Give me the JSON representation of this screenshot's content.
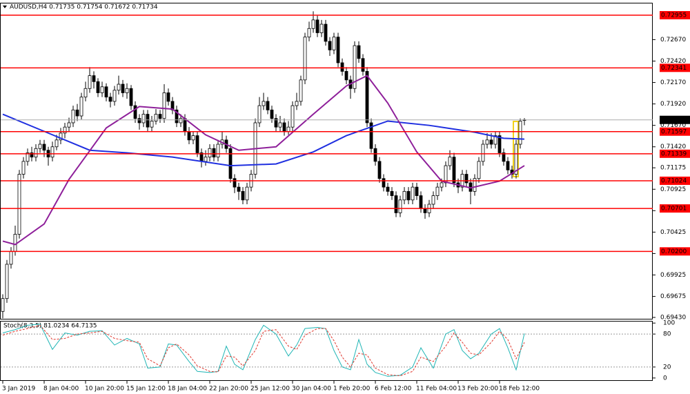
{
  "chart_data": [
    {
      "type": "candlestick",
      "title": "AUDUSD,H4  0.71735 0.71754 0.71672 0.71734",
      "categories": [
        "3 Jan 2019",
        null,
        null,
        null,
        null,
        null,
        null,
        null,
        null,
        null,
        "8 Jan 04:00",
        null,
        null,
        null,
        null,
        null,
        null,
        null,
        null,
        null,
        "10 Jan 20:00",
        null,
        null,
        null,
        null,
        null,
        null,
        null,
        null,
        null,
        "15 Jan 12:00",
        null,
        null,
        null,
        null,
        null,
        null,
        null,
        null,
        null,
        "18 Jan 04:00",
        null,
        null,
        null,
        null,
        null,
        null,
        null,
        null,
        null,
        "22 Jan 20:00",
        null,
        null,
        null,
        null,
        null,
        null,
        null,
        null,
        null,
        "25 Jan 12:00",
        null,
        null,
        null,
        null,
        null,
        null,
        null,
        null,
        null,
        "30 Jan 04:00",
        null,
        null,
        null,
        null,
        null,
        null,
        null,
        null,
        null,
        "1 Feb 20:00",
        null,
        null,
        null,
        null,
        null,
        null,
        null,
        null,
        null,
        "6 Feb 12:00",
        null,
        null,
        null,
        null,
        null,
        null,
        null,
        null,
        null,
        "11 Feb 04:00",
        null,
        null,
        null,
        null,
        null,
        null,
        null,
        null,
        null,
        "13 Feb 20:00",
        null,
        null,
        null,
        null,
        null,
        null,
        null,
        null,
        null,
        "18 Feb 12:00",
        null,
        null,
        null,
        null,
        null,
        null
      ],
      "open": [
        0.695,
        0.6965,
        0.7005,
        0.702,
        0.704,
        0.711,
        0.7125,
        0.7135,
        0.713,
        0.714,
        0.7145,
        0.7138,
        0.713,
        0.7142,
        0.715,
        0.7158,
        0.7165,
        0.717,
        0.7185,
        0.7178,
        0.72,
        0.721,
        0.7225,
        0.7218,
        0.7205,
        0.7212,
        0.72,
        0.7195,
        0.7208,
        0.7215,
        0.7205,
        0.721,
        0.719,
        0.7175,
        0.717,
        0.718,
        0.7165,
        0.7172,
        0.718,
        0.7175,
        0.7205,
        0.7195,
        0.7185,
        0.717,
        0.7175,
        0.716,
        0.715,
        0.7155,
        0.7135,
        0.7125,
        0.713,
        0.714,
        0.713,
        0.7145,
        0.715,
        0.714,
        0.7105,
        0.7095,
        0.709,
        0.708,
        0.7095,
        0.711,
        0.717,
        0.719,
        0.7195,
        0.7185,
        0.7175,
        0.7165,
        0.717,
        0.716,
        0.7165,
        0.719,
        0.7195,
        0.722,
        0.727,
        0.728,
        0.729,
        0.7275,
        0.7285,
        0.7265,
        0.7255,
        0.727,
        0.724,
        0.723,
        0.722,
        0.721,
        0.726,
        0.7245,
        0.723,
        0.717,
        0.714,
        0.7125,
        0.7105,
        0.7095,
        0.709,
        0.7085,
        0.7065,
        0.708,
        0.709,
        0.708,
        0.7095,
        0.7085,
        0.707,
        0.7065,
        0.7075,
        0.7085,
        0.7095,
        0.71,
        0.712,
        0.713,
        0.71,
        0.7095,
        0.711,
        0.71,
        0.709,
        0.7105,
        0.7125,
        0.7145,
        0.715,
        0.7145,
        0.7155,
        0.7135,
        0.7125,
        0.7115,
        0.711,
        0.7145,
        0.71735
      ],
      "high": [
        0.697,
        0.701,
        0.7025,
        0.705,
        0.7115,
        0.713,
        0.714,
        0.7142,
        0.7145,
        0.715,
        0.715,
        0.7142,
        0.7148,
        0.7156,
        0.7164,
        0.717,
        0.7176,
        0.719,
        0.7192,
        0.7205,
        0.7218,
        0.7235,
        0.723,
        0.7222,
        0.7218,
        0.7216,
        0.7205,
        0.7213,
        0.7225,
        0.722,
        0.7216,
        0.7214,
        0.7195,
        0.718,
        0.7185,
        0.7185,
        0.7178,
        0.7186,
        0.7185,
        0.7215,
        0.721,
        0.72,
        0.719,
        0.718,
        0.718,
        0.7165,
        0.716,
        0.716,
        0.714,
        0.7138,
        0.7145,
        0.7145,
        0.715,
        0.716,
        0.7155,
        0.7145,
        0.711,
        0.71,
        0.7095,
        0.71,
        0.7115,
        0.7175,
        0.72,
        0.7205,
        0.72,
        0.719,
        0.718,
        0.7178,
        0.7175,
        0.7172,
        0.7195,
        0.7205,
        0.7225,
        0.7275,
        0.7288,
        0.73,
        0.7295,
        0.729,
        0.729,
        0.727,
        0.7275,
        0.7275,
        0.7245,
        0.7235,
        0.7225,
        0.7265,
        0.7265,
        0.725,
        0.7235,
        0.7175,
        0.7145,
        0.713,
        0.711,
        0.71,
        0.7095,
        0.709,
        0.7085,
        0.7095,
        0.7095,
        0.71,
        0.71,
        0.709,
        0.7075,
        0.708,
        0.709,
        0.71,
        0.7105,
        0.7125,
        0.7138,
        0.7135,
        0.7105,
        0.7115,
        0.7115,
        0.7105,
        0.711,
        0.713,
        0.715,
        0.7158,
        0.7158,
        0.716,
        0.716,
        0.714,
        0.713,
        0.712,
        0.715,
        0.7175,
        0.71754
      ],
      "low": [
        0.6942,
        0.696,
        0.7,
        0.7015,
        0.7035,
        0.7105,
        0.712,
        0.7125,
        0.7125,
        0.7135,
        0.713,
        0.712,
        0.7125,
        0.7138,
        0.7145,
        0.7152,
        0.716,
        0.7165,
        0.7172,
        0.7174,
        0.7195,
        0.7205,
        0.721,
        0.72,
        0.72,
        0.7195,
        0.7188,
        0.719,
        0.7203,
        0.72,
        0.7198,
        0.7185,
        0.717,
        0.7162,
        0.7165,
        0.716,
        0.716,
        0.7168,
        0.717,
        0.717,
        0.719,
        0.718,
        0.7165,
        0.7165,
        0.7155,
        0.7145,
        0.7145,
        0.713,
        0.7118,
        0.712,
        0.7125,
        0.7125,
        0.7125,
        0.714,
        0.7135,
        0.71,
        0.7088,
        0.708,
        0.7075,
        0.7075,
        0.709,
        0.7105,
        0.7165,
        0.7185,
        0.718,
        0.717,
        0.716,
        0.716,
        0.7155,
        0.7156,
        0.716,
        0.7185,
        0.719,
        0.7215,
        0.7265,
        0.7275,
        0.727,
        0.727,
        0.726,
        0.7248,
        0.725,
        0.7235,
        0.7225,
        0.7215,
        0.7198,
        0.7205,
        0.724,
        0.7225,
        0.7165,
        0.7135,
        0.712,
        0.71,
        0.709,
        0.7085,
        0.708,
        0.706,
        0.706,
        0.7075,
        0.7075,
        0.7075,
        0.708,
        0.7065,
        0.7058,
        0.706,
        0.707,
        0.708,
        0.709,
        0.7095,
        0.7115,
        0.7095,
        0.7088,
        0.709,
        0.7095,
        0.7075,
        0.7085,
        0.71,
        0.712,
        0.714,
        0.714,
        0.714,
        0.713,
        0.712,
        0.711,
        0.7105,
        0.7105,
        0.714,
        0.71672
      ],
      "close": [
        0.6965,
        0.7005,
        0.702,
        0.704,
        0.711,
        0.7125,
        0.7135,
        0.713,
        0.714,
        0.7145,
        0.7138,
        0.713,
        0.7142,
        0.715,
        0.7158,
        0.7165,
        0.717,
        0.7185,
        0.7178,
        0.72,
        0.721,
        0.7225,
        0.7218,
        0.7205,
        0.7212,
        0.72,
        0.7195,
        0.7208,
        0.7215,
        0.7205,
        0.721,
        0.719,
        0.7175,
        0.717,
        0.718,
        0.7165,
        0.7172,
        0.718,
        0.7175,
        0.7205,
        0.7195,
        0.7185,
        0.717,
        0.7175,
        0.716,
        0.715,
        0.7155,
        0.7135,
        0.7125,
        0.713,
        0.714,
        0.713,
        0.7145,
        0.715,
        0.714,
        0.7105,
        0.7095,
        0.709,
        0.708,
        0.7095,
        0.711,
        0.717,
        0.719,
        0.7195,
        0.7185,
        0.7175,
        0.7165,
        0.717,
        0.716,
        0.7165,
        0.719,
        0.7195,
        0.722,
        0.727,
        0.728,
        0.729,
        0.7275,
        0.7285,
        0.7265,
        0.7255,
        0.727,
        0.724,
        0.723,
        0.722,
        0.721,
        0.726,
        0.7245,
        0.723,
        0.717,
        0.714,
        0.7125,
        0.7105,
        0.7095,
        0.709,
        0.7085,
        0.7065,
        0.708,
        0.709,
        0.708,
        0.7095,
        0.7085,
        0.707,
        0.7065,
        0.7075,
        0.7085,
        0.7095,
        0.71,
        0.712,
        0.713,
        0.71,
        0.7095,
        0.711,
        0.71,
        0.709,
        0.7105,
        0.7125,
        0.7145,
        0.715,
        0.7145,
        0.7155,
        0.7135,
        0.7125,
        0.7115,
        0.711,
        0.7145,
        0.7172,
        0.71734
      ],
      "up_color": "#ffffff",
      "down_color": "#000000",
      "ylim": [
        0.69414,
        0.73092
      ],
      "yticks": [
        {
          "value": 0.7267,
          "label": "0.72670"
        },
        {
          "value": 0.7242,
          "label": "0.72420"
        },
        {
          "value": 0.7217,
          "label": "0.72170"
        },
        {
          "value": 0.7192,
          "label": "0.71920"
        },
        {
          "value": 0.7167,
          "label": "0.71670"
        },
        {
          "value": 0.7142,
          "label": "0.71420"
        },
        0.71175,
        0.70925,
        0.70675,
        0.70425,
        0.70175,
        0.69925,
        0.69675,
        {
          "value": 0.6943,
          "label": "0.69430"
        }
      ],
      "levels": [
        0.72955,
        0.72341,
        0.71597,
        0.71339,
        0.71024,
        0.70701,
        {
          "value": 0.702,
          "label": "0.70200"
        }
      ],
      "level_color": "#ff0000",
      "overlays": [
        {
          "color": "#1f2fe0",
          "x": [
            0,
            10,
            21,
            30,
            41,
            55,
            66,
            75,
            83,
            93,
            103,
            114,
            121,
            126
          ],
          "values": [
            0.718,
            0.716,
            0.7138,
            0.7135,
            0.713,
            0.712,
            0.7122,
            0.7136,
            0.7155,
            0.7172,
            0.7167,
            0.7159,
            0.7152,
            0.7151
          ]
        },
        {
          "color": "#8e1f9a",
          "x": [
            0,
            3,
            10,
            16,
            25,
            33,
            41,
            49,
            57,
            66,
            75,
            83,
            88,
            93,
            100,
            106,
            113,
            120,
            126
          ],
          "values": [
            0.7032,
            0.7028,
            0.7052,
            0.7104,
            0.7164,
            0.7189,
            0.7186,
            0.7156,
            0.7138,
            0.7142,
            0.718,
            0.7213,
            0.7225,
            0.7193,
            0.7136,
            0.7102,
            0.7094,
            0.7102,
            0.712
          ]
        }
      ],
      "grid": false
    },
    {
      "type": "line",
      "title": "Stoch(8,3,5) 81.0234 64.7135",
      "ylim": [
        -4,
        104
      ],
      "yticks": [
        100,
        80,
        20,
        0
      ],
      "levels": [
        80,
        20
      ],
      "series": [
        {
          "color": "#1fb5b5",
          "dashed": false,
          "x": [
            0,
            3,
            6,
            9,
            12,
            15,
            18,
            21,
            24,
            27,
            30,
            33,
            35,
            38,
            40,
            42,
            45,
            47,
            50,
            52,
            54,
            56,
            58,
            61,
            63,
            66,
            69,
            71,
            73,
            76,
            78,
            80,
            82,
            84,
            86,
            88,
            90,
            93,
            96,
            99,
            101,
            104,
            107,
            109,
            111,
            113,
            115,
            118,
            120,
            122,
            124,
            126
          ],
          "values": [
            82,
            88,
            96,
            98,
            52,
            82,
            78,
            85,
            86,
            60,
            72,
            62,
            18,
            20,
            62,
            60,
            30,
            12,
            10,
            12,
            58,
            25,
            15,
            70,
            96,
            80,
            40,
            60,
            90,
            92,
            90,
            50,
            20,
            15,
            70,
            25,
            10,
            3,
            5,
            20,
            55,
            18,
            80,
            88,
            50,
            35,
            45,
            80,
            90,
            55,
            15,
            81.0234
          ]
        },
        {
          "color": "#e0352b",
          "dashed": true,
          "x": [
            0,
            3,
            6,
            9,
            12,
            15,
            18,
            21,
            24,
            27,
            30,
            33,
            35,
            38,
            40,
            42,
            45,
            47,
            50,
            52,
            54,
            56,
            58,
            61,
            63,
            66,
            69,
            71,
            73,
            76,
            78,
            80,
            82,
            84,
            86,
            88,
            90,
            93,
            96,
            99,
            101,
            104,
            107,
            109,
            111,
            113,
            115,
            118,
            120,
            122,
            124,
            126
          ],
          "values": [
            78,
            85,
            90,
            96,
            70,
            72,
            80,
            82,
            85,
            72,
            68,
            65,
            35,
            22,
            55,
            62,
            42,
            22,
            12,
            11,
            40,
            38,
            22,
            50,
            85,
            88,
            58,
            52,
            78,
            90,
            90,
            68,
            38,
            20,
            45,
            42,
            18,
            6,
            4,
            12,
            38,
            30,
            58,
            82,
            65,
            45,
            42,
            65,
            85,
            70,
            35,
            64.7135
          ]
        }
      ]
    }
  ]
}
